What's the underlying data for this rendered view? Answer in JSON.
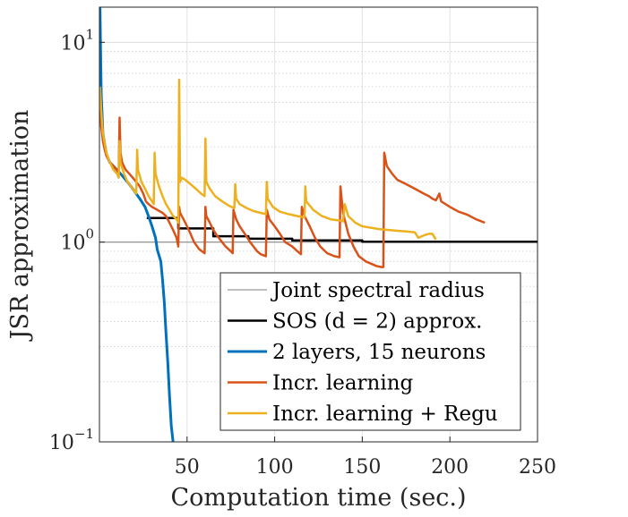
{
  "chart_data": {
    "type": "line",
    "title": "",
    "xlabel": "Computation time (sec.)",
    "ylabel": "JSR approximation",
    "xlim": [
      0,
      250
    ],
    "ylim": [
      0.1,
      15
    ],
    "yscale": "log",
    "grid": true,
    "x_ticks": [
      {
        "value": 50,
        "label": "50"
      },
      {
        "value": 100,
        "label": "100"
      },
      {
        "value": 150,
        "label": "150"
      },
      {
        "value": 200,
        "label": "200"
      },
      {
        "value": 250,
        "label": "250"
      }
    ],
    "y_ticks": [
      {
        "value": 0.1,
        "base": "10",
        "exp": "−1"
      },
      {
        "value": 1,
        "base": "10",
        "exp": "0"
      },
      {
        "value": 10,
        "base": "10",
        "exp": "1"
      }
    ],
    "legend_position": "bottom-right",
    "series": [
      {
        "name": "Joint spectral radius",
        "color": "#7f7f7f",
        "width": 1,
        "step": false,
        "x": [
          0,
          250
        ],
        "y": [
          1.0,
          1.0
        ]
      },
      {
        "name": "SOS (d = 2) approx.",
        "color": "#000000",
        "width": 2.5,
        "step": true,
        "x": [
          27,
          45,
          65,
          85,
          110,
          150,
          250
        ],
        "y": [
          1.32,
          1.17,
          1.07,
          1.04,
          1.02,
          1.005,
          1.0
        ]
      },
      {
        "name": "2 layers, 15 neurons",
        "color": "#0072BD",
        "width": 3,
        "step": false,
        "x": [
          0.3,
          1,
          2,
          4,
          6,
          8,
          10,
          12,
          15,
          18,
          20,
          23,
          26,
          28,
          30,
          32,
          33,
          35,
          36,
          37,
          38,
          39,
          40,
          41,
          42
        ],
        "y": [
          15,
          5.5,
          3.5,
          2.75,
          2.5,
          2.4,
          2.3,
          2.2,
          2.05,
          1.9,
          1.8,
          1.65,
          1.5,
          1.35,
          1.2,
          1.05,
          0.92,
          0.8,
          0.65,
          0.5,
          0.35,
          0.25,
          0.17,
          0.12,
          0.1
        ]
      },
      {
        "name": "Incr. learning",
        "color": "#D95319",
        "width": 2.5,
        "step": false,
        "x": [
          0.3,
          1,
          2,
          3,
          4,
          5,
          6,
          7,
          8,
          9,
          10,
          11,
          11.5,
          12,
          13,
          15,
          17,
          19,
          21,
          23,
          25,
          26,
          26.5,
          28,
          30,
          33,
          36,
          38,
          40,
          42,
          44,
          45,
          45.5,
          46,
          47,
          48,
          49,
          50,
          52,
          54,
          57,
          60,
          60.5,
          61,
          63,
          65,
          67,
          70,
          72,
          75,
          76,
          76.5,
          78,
          80,
          83,
          86,
          90,
          92,
          95,
          95.5,
          97,
          100,
          103,
          106,
          110,
          113,
          115,
          115.5,
          117,
          120,
          123,
          126,
          130,
          134,
          137,
          137.5,
          139,
          142,
          145,
          148,
          152,
          155,
          158,
          161,
          162,
          162.5,
          164,
          167,
          170,
          175,
          180,
          185,
          188,
          190,
          192,
          194,
          195,
          200,
          205,
          210,
          215,
          220
        ],
        "y": [
          5.0,
          3.8,
          3.2,
          2.9,
          2.7,
          2.6,
          2.5,
          2.45,
          2.4,
          2.35,
          2.3,
          2.2,
          4.2,
          2.8,
          2.5,
          2.3,
          2.2,
          2.1,
          2.0,
          1.9,
          1.75,
          1.65,
          1.6,
          1.55,
          1.5,
          1.45,
          1.4,
          1.35,
          1.25,
          1.15,
          1.05,
          0.95,
          1.5,
          1.4,
          1.35,
          1.3,
          1.25,
          1.2,
          1.1,
          1.0,
          0.92,
          0.88,
          1.5,
          1.35,
          1.25,
          1.15,
          1.08,
          1.0,
          0.95,
          0.9,
          0.88,
          1.45,
          1.3,
          1.2,
          1.1,
          1.0,
          0.9,
          0.87,
          0.85,
          1.45,
          1.3,
          1.2,
          1.1,
          1.0,
          0.95,
          0.9,
          0.87,
          1.5,
          1.35,
          1.2,
          1.05,
          0.95,
          0.88,
          0.85,
          0.84,
          1.9,
          1.4,
          1.1,
          0.95,
          0.85,
          0.8,
          0.78,
          0.76,
          0.75,
          0.75,
          2.8,
          2.4,
          2.2,
          2.05,
          1.95,
          1.85,
          1.75,
          1.7,
          1.65,
          1.62,
          1.75,
          1.6,
          1.5,
          1.42,
          1.37,
          1.3,
          1.25
        ]
      },
      {
        "name": "Incr. learning + Regu",
        "color": "#EDB120",
        "width": 2.5,
        "step": false,
        "x": [
          0.3,
          1,
          2,
          4,
          6,
          8,
          10,
          11,
          11.5,
          12,
          14,
          16,
          18,
          20,
          21,
          21.5,
          22,
          24,
          26,
          28,
          30,
          31,
          31.5,
          32,
          34,
          36,
          38,
          40,
          42,
          44,
          45,
          45.5,
          46,
          47,
          49,
          52,
          55,
          58,
          60,
          60.5,
          61,
          63,
          66,
          70,
          74,
          77,
          77.5,
          78,
          80,
          84,
          88,
          92,
          95,
          95.5,
          96,
          99,
          103,
          108,
          113,
          117,
          117.5,
          118,
          122,
          127,
          132,
          138,
          139,
          140,
          142,
          146,
          150,
          155,
          160,
          165,
          170,
          175,
          180,
          182,
          185,
          188,
          190,
          192
        ],
        "y": [
          6.0,
          4.5,
          3.5,
          2.8,
          2.5,
          2.3,
          2.2,
          2.1,
          3.2,
          2.5,
          2.2,
          2.0,
          1.9,
          1.8,
          1.75,
          2.9,
          2.3,
          2.0,
          1.85,
          1.7,
          1.6,
          1.55,
          2.8,
          2.2,
          1.9,
          1.7,
          1.55,
          1.45,
          1.35,
          1.3,
          1.25,
          6.5,
          2.0,
          2.1,
          2.05,
          1.95,
          1.85,
          1.75,
          1.7,
          3.3,
          2.0,
          1.85,
          1.7,
          1.6,
          1.52,
          1.48,
          1.95,
          1.65,
          1.55,
          1.48,
          1.43,
          1.4,
          1.38,
          2.0,
          1.65,
          1.5,
          1.42,
          1.38,
          1.35,
          1.33,
          1.9,
          1.6,
          1.45,
          1.35,
          1.3,
          1.28,
          1.27,
          1.55,
          1.35,
          1.25,
          1.2,
          1.18,
          1.16,
          1.15,
          1.14,
          1.13,
          1.12,
          1.05,
          1.08,
          1.1,
          1.1,
          1.03
        ]
      }
    ]
  }
}
